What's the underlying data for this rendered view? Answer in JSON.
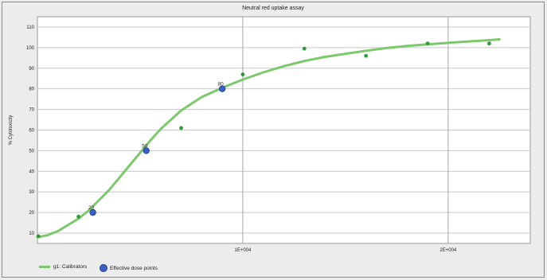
{
  "chart_data": {
    "type": "scatter",
    "title": "Neutral red uptake assay",
    "ylabel": "% Cytotoxicity",
    "xlabel": "",
    "xlim": [
      0,
      24000
    ],
    "ylim": [
      5,
      115
    ],
    "x_ticks": [
      10000,
      20000
    ],
    "x_tick_labels": [
      "1E+004",
      "2E+004"
    ],
    "y_ticks": [
      10,
      20,
      30,
      40,
      50,
      60,
      70,
      80,
      90,
      100,
      110
    ],
    "grid": true,
    "legend_position": "bottom-left",
    "colors": {
      "curve": "#7bc96b",
      "calibrator": "#2e9a3a",
      "effective": "#3a5fc4",
      "plot_bg": "#ffffff",
      "grid": "#c8c8c8"
    },
    "series": [
      {
        "name": "g1: Calibrators",
        "kind": "curve-with-points",
        "points": [
          {
            "x": 50,
            "y": 8.5
          },
          {
            "x": 2000,
            "y": 18
          },
          {
            "x": 7000,
            "y": 61
          },
          {
            "x": 10000,
            "y": 87
          },
          {
            "x": 13000,
            "y": 99.5
          },
          {
            "x": 16000,
            "y": 96
          },
          {
            "x": 19000,
            "y": 102
          },
          {
            "x": 22000,
            "y": 102
          }
        ],
        "curve": [
          {
            "x": 0,
            "y": 8
          },
          {
            "x": 500,
            "y": 9
          },
          {
            "x": 1000,
            "y": 11
          },
          {
            "x": 1500,
            "y": 14
          },
          {
            "x": 2000,
            "y": 17
          },
          {
            "x": 2500,
            "y": 21
          },
          {
            "x": 3000,
            "y": 26
          },
          {
            "x": 3500,
            "y": 31
          },
          {
            "x": 4000,
            "y": 37
          },
          {
            "x": 4500,
            "y": 43
          },
          {
            "x": 5000,
            "y": 49
          },
          {
            "x": 5500,
            "y": 55
          },
          {
            "x": 6000,
            "y": 60.5
          },
          {
            "x": 7000,
            "y": 69.5
          },
          {
            "x": 8000,
            "y": 76
          },
          {
            "x": 9000,
            "y": 80.5
          },
          {
            "x": 10000,
            "y": 84.5
          },
          {
            "x": 11000,
            "y": 88
          },
          {
            "x": 12000,
            "y": 91
          },
          {
            "x": 13000,
            "y": 93.5
          },
          {
            "x": 14000,
            "y": 95.5
          },
          {
            "x": 15000,
            "y": 97
          },
          {
            "x": 16000,
            "y": 98.5
          },
          {
            "x": 17000,
            "y": 99.8
          },
          {
            "x": 18000,
            "y": 100.8
          },
          {
            "x": 19000,
            "y": 101.6
          },
          {
            "x": 20000,
            "y": 102.3
          },
          {
            "x": 21000,
            "y": 103
          },
          {
            "x": 22000,
            "y": 103.6
          },
          {
            "x": 22500,
            "y": 104
          }
        ]
      },
      {
        "name": "Effective dose points",
        "kind": "points",
        "points": [
          {
            "x": 2700,
            "y": 20,
            "label": "20"
          },
          {
            "x": 5300,
            "y": 50,
            "label": "50"
          },
          {
            "x": 9000,
            "y": 80,
            "label": "80"
          }
        ]
      }
    ]
  }
}
